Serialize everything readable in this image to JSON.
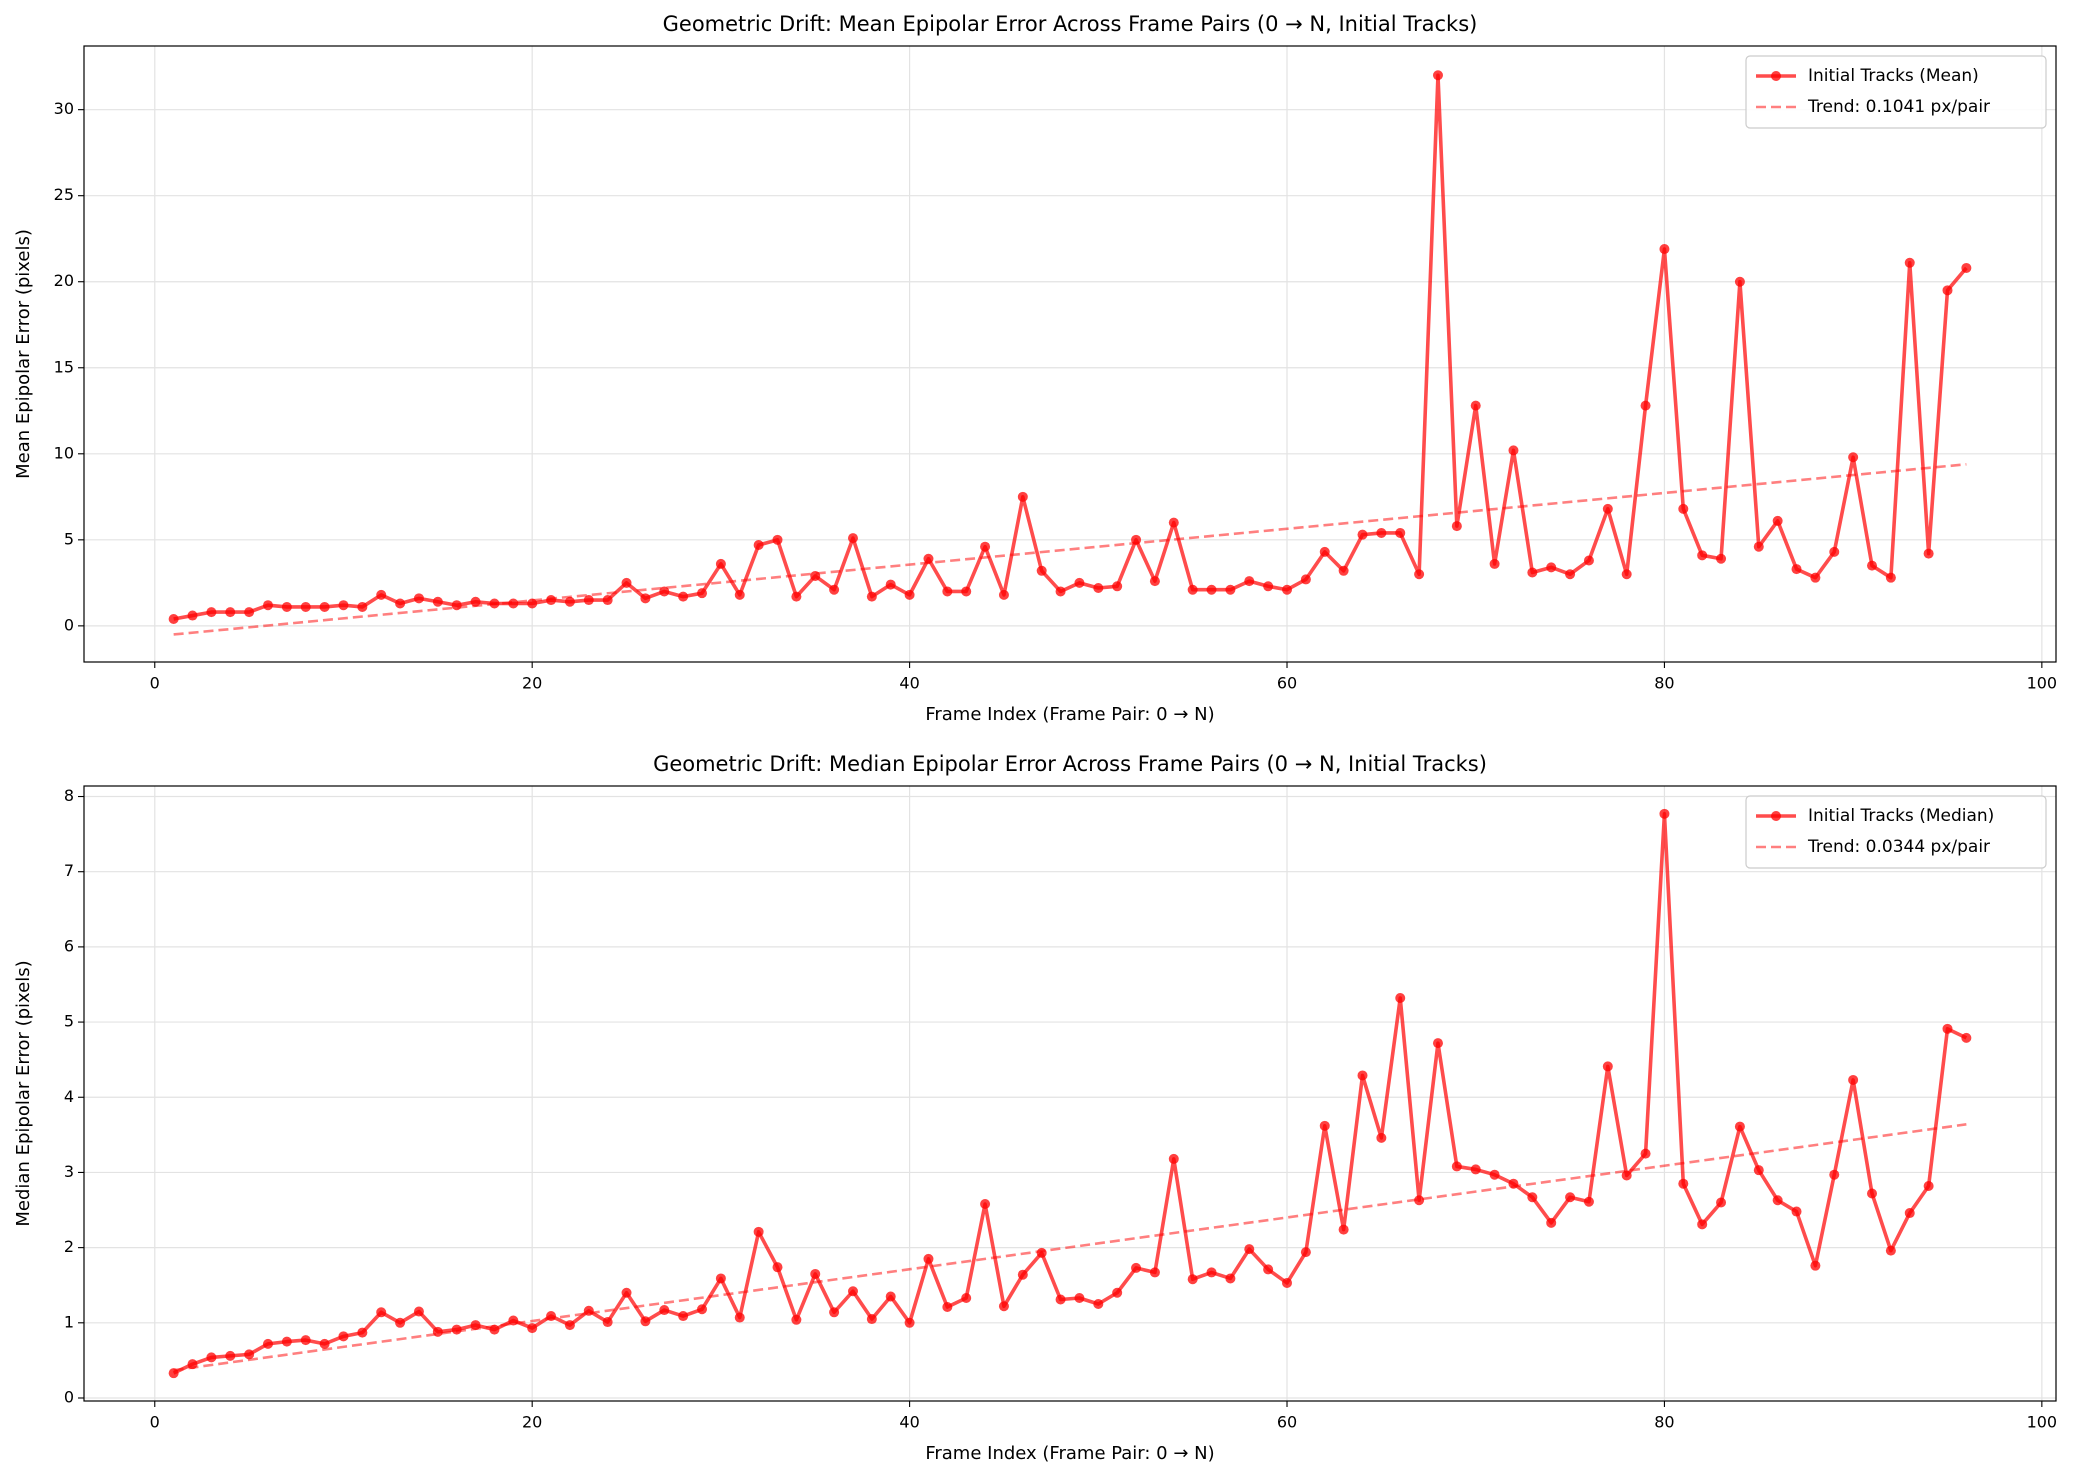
{
  "chart_data": [
    {
      "type": "line",
      "title": "Geometric Drift: Mean Epipolar Error Across Frame Pairs (0 → N, Initial Tracks)",
      "x_label": "Frame Index (Frame Pair: 0 → N)",
      "y_label": "Mean Epipolar Error (pixels)",
      "x": [
        1,
        2,
        3,
        4,
        5,
        6,
        7,
        8,
        9,
        10,
        11,
        12,
        13,
        14,
        15,
        16,
        17,
        18,
        19,
        20,
        21,
        22,
        23,
        24,
        25,
        26,
        27,
        28,
        29,
        30,
        31,
        32,
        33,
        34,
        35,
        36,
        37,
        38,
        39,
        40,
        41,
        42,
        43,
        44,
        45,
        46,
        47,
        48,
        49,
        50,
        51,
        52,
        53,
        54,
        55,
        56,
        57,
        58,
        59,
        60,
        61,
        62,
        63,
        64,
        65,
        66,
        67,
        68,
        69,
        70,
        71,
        72,
        73,
        74,
        75,
        76,
        77,
        78,
        79,
        80,
        81,
        82,
        83,
        84,
        85,
        86,
        87,
        88,
        89,
        90,
        91,
        92,
        93,
        94,
        95,
        96
      ],
      "series": [
        {
          "name": "Initial Tracks (Mean)",
          "color": "#ff0000",
          "style": "solid-marker",
          "values": [
            0.4,
            0.6,
            0.8,
            0.8,
            0.8,
            1.2,
            1.1,
            1.1,
            1.1,
            1.2,
            1.1,
            1.8,
            1.3,
            1.6,
            1.4,
            1.2,
            1.4,
            1.3,
            1.3,
            1.3,
            1.5,
            1.4,
            1.5,
            1.5,
            2.5,
            1.6,
            2.0,
            1.7,
            1.9,
            3.6,
            1.8,
            4.7,
            5.0,
            1.7,
            2.9,
            2.1,
            5.1,
            1.7,
            2.4,
            1.8,
            3.9,
            2.0,
            2.0,
            4.6,
            1.8,
            7.5,
            3.2,
            2.0,
            2.5,
            2.2,
            2.3,
            5.0,
            2.6,
            6.0,
            2.1,
            2.1,
            2.1,
            2.6,
            2.3,
            2.1,
            2.7,
            4.3,
            3.2,
            5.3,
            5.4,
            5.4,
            3.0,
            32.0,
            5.8,
            12.8,
            3.6,
            10.2,
            3.1,
            3.4,
            3.0,
            3.8,
            6.8,
            3.0,
            12.8,
            21.9,
            6.8,
            4.1,
            3.9,
            20.0,
            4.6,
            6.1,
            3.3,
            2.8,
            4.3,
            9.8,
            3.5,
            2.8,
            21.1,
            4.2,
            19.5,
            20.8
          ]
        },
        {
          "name": "Trend: 0.1041 px/pair",
          "color": "#ff0000",
          "style": "dashed",
          "x": [
            1,
            96
          ],
          "values": [
            -0.5,
            9.39
          ]
        }
      ],
      "xlim": [
        -3.75,
        100.75
      ],
      "xticks": [
        0,
        20,
        40,
        60,
        80,
        100
      ],
      "ylim": [
        -2.1,
        33.7
      ],
      "yticks": [
        0,
        5,
        10,
        15,
        20,
        25,
        30
      ],
      "grid": true,
      "legend": "upper-right"
    },
    {
      "type": "line",
      "title": "Geometric Drift: Median Epipolar Error Across Frame Pairs (0 → N, Initial Tracks)",
      "x_label": "Frame Index (Frame Pair: 0 → N)",
      "y_label": "Median Epipolar Error (pixels)",
      "x": [
        1,
        2,
        3,
        4,
        5,
        6,
        7,
        8,
        9,
        10,
        11,
        12,
        13,
        14,
        15,
        16,
        17,
        18,
        19,
        20,
        21,
        22,
        23,
        24,
        25,
        26,
        27,
        28,
        29,
        30,
        31,
        32,
        33,
        34,
        35,
        36,
        37,
        38,
        39,
        40,
        41,
        42,
        43,
        44,
        45,
        46,
        47,
        48,
        49,
        50,
        51,
        52,
        53,
        54,
        55,
        56,
        57,
        58,
        59,
        60,
        61,
        62,
        63,
        64,
        65,
        66,
        67,
        68,
        69,
        70,
        71,
        72,
        73,
        74,
        75,
        76,
        77,
        78,
        79,
        80,
        81,
        82,
        83,
        84,
        85,
        86,
        87,
        88,
        89,
        90,
        91,
        92,
        93,
        94,
        95,
        96
      ],
      "series": [
        {
          "name": "Initial Tracks (Median)",
          "color": "#ff0000",
          "style": "solid-marker",
          "values": [
            0.33,
            0.45,
            0.54,
            0.56,
            0.58,
            0.72,
            0.75,
            0.77,
            0.72,
            0.82,
            0.87,
            1.14,
            1.0,
            1.15,
            0.88,
            0.91,
            0.97,
            0.91,
            1.03,
            0.93,
            1.09,
            0.97,
            1.16,
            1.01,
            1.4,
            1.02,
            1.17,
            1.09,
            1.18,
            1.59,
            1.07,
            2.21,
            1.74,
            1.04,
            1.65,
            1.14,
            1.42,
            1.05,
            1.35,
            1.0,
            1.85,
            1.21,
            1.33,
            2.58,
            1.22,
            1.64,
            1.93,
            1.31,
            1.33,
            1.25,
            1.4,
            1.73,
            1.67,
            3.18,
            1.58,
            1.67,
            1.59,
            1.98,
            1.71,
            1.53,
            1.94,
            3.62,
            2.24,
            4.29,
            3.46,
            5.32,
            2.63,
            4.72,
            3.08,
            3.04,
            2.97,
            2.85,
            2.67,
            2.33,
            2.67,
            2.61,
            4.41,
            2.96,
            3.25,
            7.77,
            2.85,
            2.31,
            2.6,
            3.61,
            3.03,
            2.63,
            2.48,
            1.76,
            2.97,
            4.23,
            2.72,
            1.96,
            2.46,
            2.82,
            4.91,
            4.79
          ]
        },
        {
          "name": "Trend: 0.0344 px/pair",
          "color": "#ff0000",
          "style": "dashed",
          "x": [
            1,
            96
          ],
          "values": [
            0.37,
            3.64
          ]
        }
      ],
      "xlim": [
        -3.75,
        100.75
      ],
      "xticks": [
        0,
        20,
        40,
        60,
        80,
        100
      ],
      "ylim": [
        -0.04,
        8.14
      ],
      "yticks": [
        0,
        1,
        2,
        3,
        4,
        5,
        6,
        7,
        8
      ],
      "grid": true,
      "legend": "upper-right"
    }
  ]
}
